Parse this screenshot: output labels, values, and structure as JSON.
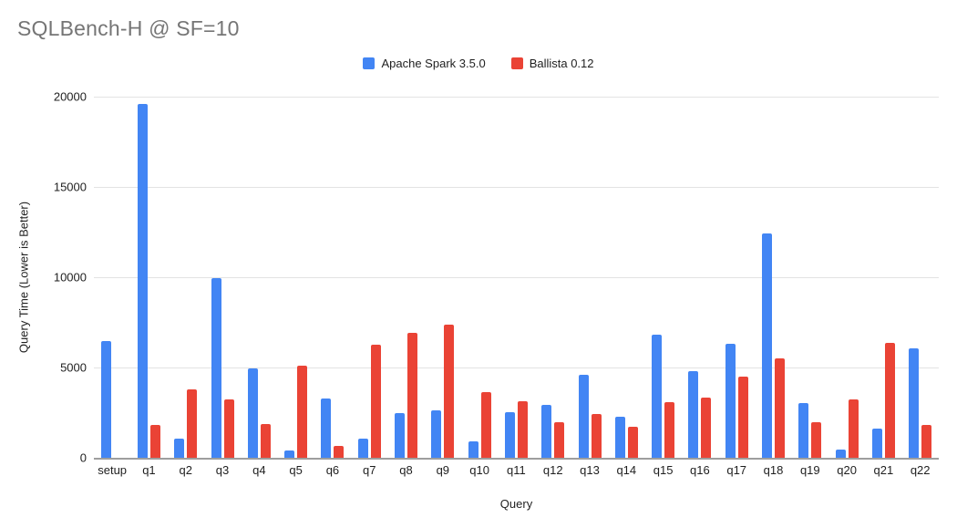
{
  "title": "SQLBench-H @ SF=10",
  "colors": {
    "title_text": "#757575",
    "axis_text": "#1f1f1f",
    "gridline": "#e3e3e3",
    "axis_line": "#9e9e9e",
    "series_blue": "#4285F4",
    "series_red": "#EA4335",
    "background": "#ffffff"
  },
  "chart_data": {
    "type": "bar",
    "title": "SQLBench-H @ SF=10",
    "xlabel": "Query",
    "ylabel": "Query Time (Lower is Better)",
    "ylim": [
      0,
      20000
    ],
    "yticks": [
      0,
      5000,
      10000,
      15000,
      20000
    ],
    "grid": true,
    "legend_position": "top",
    "categories": [
      "setup",
      "q1",
      "q2",
      "q3",
      "q4",
      "q5",
      "q6",
      "q7",
      "q8",
      "q9",
      "q10",
      "q11",
      "q12",
      "q13",
      "q14",
      "q15",
      "q16",
      "q17",
      "q18",
      "q19",
      "q20",
      "q21",
      "q22"
    ],
    "series": [
      {
        "name": "Apache Spark 3.5.0",
        "color": "#4285F4",
        "values": [
          6450,
          19600,
          1050,
          9950,
          4950,
          400,
          3300,
          1050,
          2450,
          2650,
          900,
          2500,
          2950,
          4600,
          2250,
          6800,
          4800,
          6300,
          12400,
          3050,
          450,
          1600,
          6050
        ]
      },
      {
        "name": "Ballista 0.12",
        "color": "#EA4335",
        "values": [
          0,
          1800,
          3800,
          3250,
          1850,
          5100,
          650,
          6250,
          6900,
          7350,
          3650,
          3150,
          1950,
          2400,
          1700,
          3100,
          3350,
          4500,
          5500,
          1950,
          3250,
          6350,
          1800
        ]
      }
    ]
  }
}
